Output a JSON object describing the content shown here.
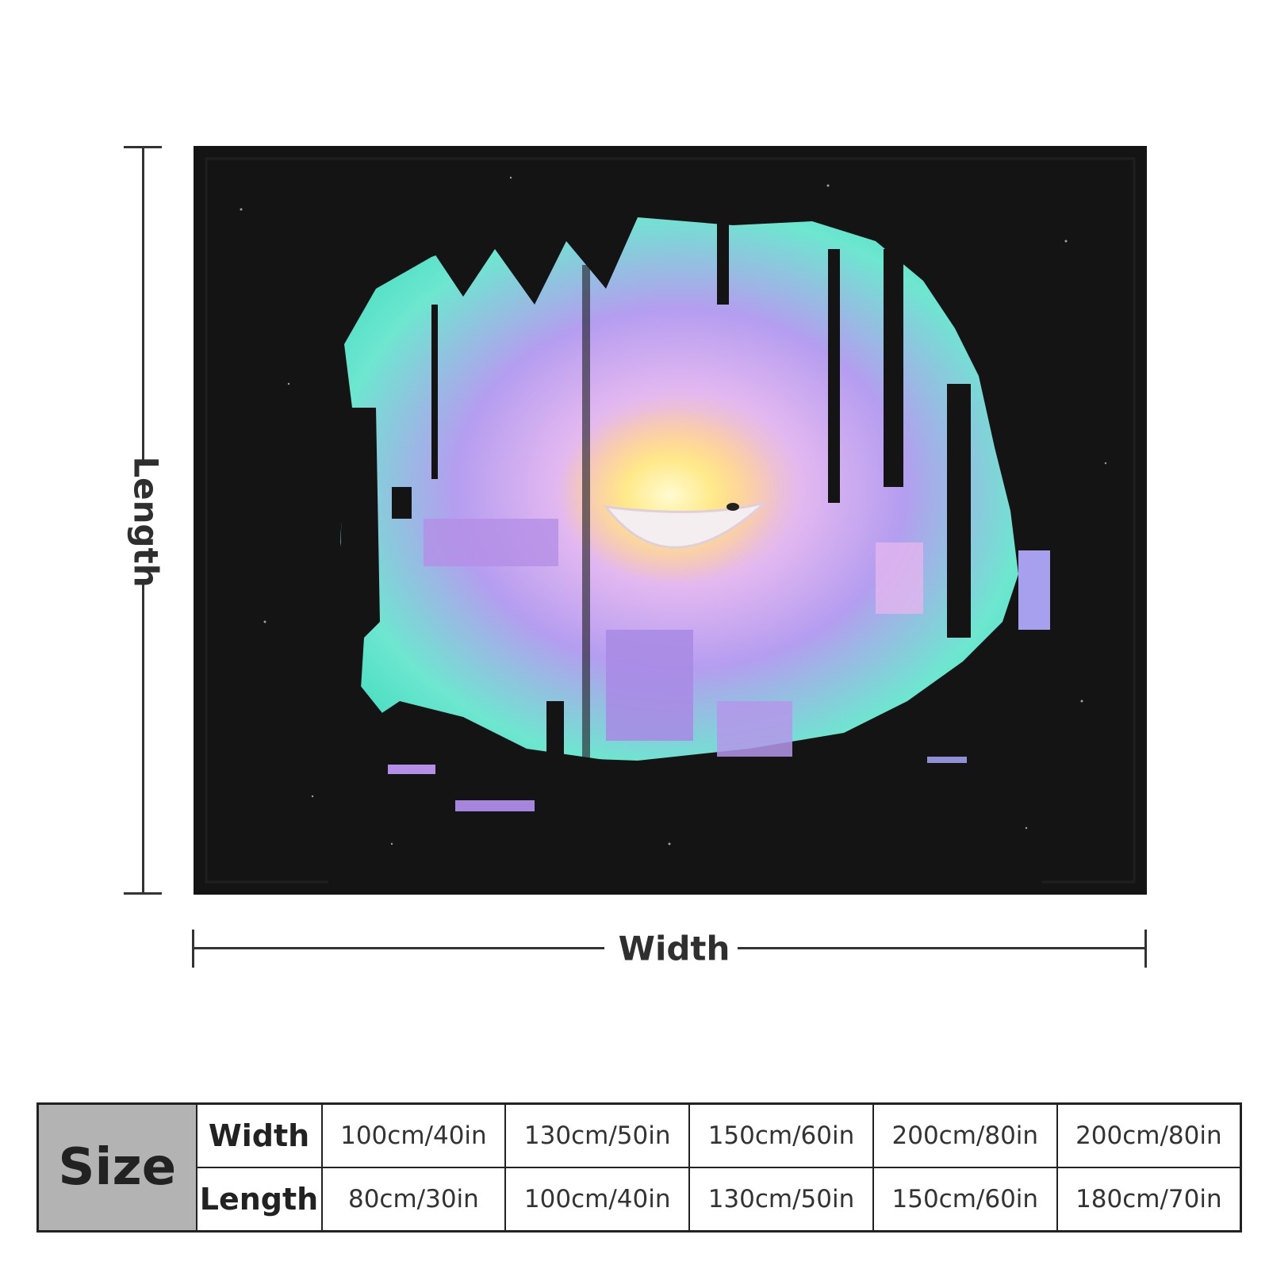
{
  "diagram": {
    "length_label": "Length",
    "width_label": "Width"
  },
  "colors": {
    "frame": "#141414",
    "teal": "#5ee8cc",
    "lavender": "#c9a6f0",
    "glow": "#fff3a0"
  },
  "size_table": {
    "header": "Size",
    "row_labels": [
      "Width",
      "Length"
    ],
    "widths": [
      "100cm/40in",
      "130cm/50in",
      "150cm/60in",
      "200cm/80in",
      "200cm/80in"
    ],
    "lengths": [
      "80cm/30in",
      "100cm/40in",
      "130cm/50in",
      "150cm/60in",
      "180cm/70in"
    ]
  }
}
